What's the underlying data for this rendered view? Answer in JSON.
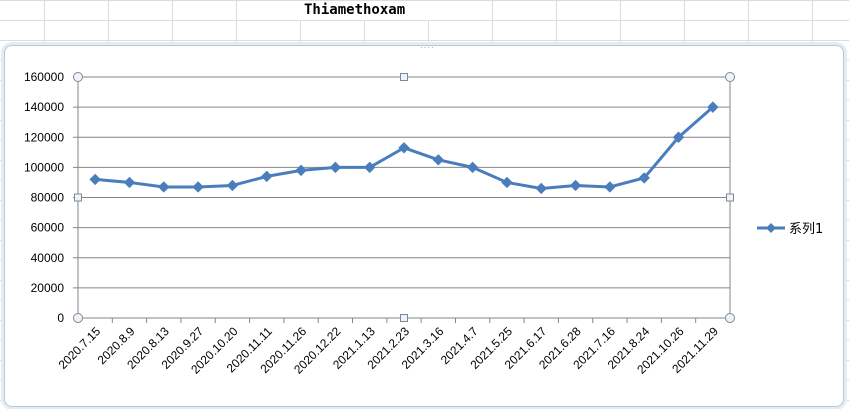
{
  "sheet": {
    "cell_text": "Thiamethoxam"
  },
  "chart_data": {
    "type": "line",
    "title": "",
    "xlabel": "",
    "ylabel": "",
    "categories": [
      "2020.7.15",
      "2020.8.9",
      "2020.8.13",
      "2020.9.27",
      "2020.10.20",
      "2020.11.11",
      "2020.11.26",
      "2020.12.22",
      "2021.1.13",
      "2021.2.23",
      "2021.3.16",
      "2021.4.7",
      "2021.5.25",
      "2021.6.17",
      "2021.6.28",
      "2021.7.16",
      "2021.8.24",
      "2021.10.26",
      "2021.11.29"
    ],
    "series": [
      {
        "name": "系列1",
        "values": [
          92000,
          90000,
          87000,
          87000,
          88000,
          94000,
          98000,
          100000,
          100000,
          113000,
          105000,
          100000,
          90000,
          86000,
          88000,
          87000,
          93000,
          120000,
          140000
        ]
      }
    ],
    "ylim": [
      0,
      160000
    ],
    "yticks": [
      0,
      20000,
      40000,
      60000,
      80000,
      100000,
      120000,
      140000,
      160000
    ],
    "grid": true,
    "legend": "right",
    "color": "#4a7ebb"
  }
}
